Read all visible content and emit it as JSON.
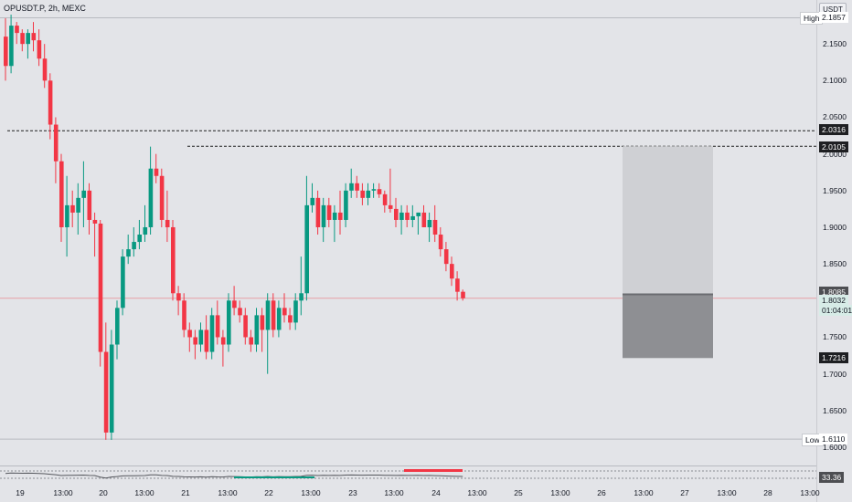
{
  "header": {
    "symbol": "OPUSDT.P, 2h, MEXC"
  },
  "currency_button": "USDT",
  "price_axis": {
    "ticks": [
      "2.1500",
      "2.1000",
      "2.0500",
      "2.0000",
      "1.9500",
      "1.9000",
      "1.8500",
      "1.8000",
      "1.7500",
      "1.7000",
      "1.6500",
      "1.6000"
    ],
    "high_label": "High",
    "high_value": "2.1857",
    "low_label": "Low",
    "low_value": "1.6110",
    "level_1": "2.0316",
    "level_2": "2.0105",
    "entry": "1.8085",
    "last_price": "1.8032",
    "countdown": "01:04:01",
    "stop": "1.7216"
  },
  "time_axis": {
    "labels": [
      "19",
      "13:00",
      "20",
      "13:00",
      "21",
      "13:00",
      "22",
      "13:00",
      "23",
      "13:00",
      "24",
      "13:00",
      "25",
      "13:00",
      "26",
      "13:00",
      "27",
      "13:00",
      "28",
      "13:00"
    ]
  },
  "indicator": {
    "value": "33.36"
  },
  "colors": {
    "up": "#089981",
    "down": "#f23645",
    "bg": "#e3e4e8",
    "box_upper": "#cfd0d4",
    "box_lower": "#8e8f93"
  },
  "chart_data": {
    "type": "candlestick",
    "title": "OPUSDT.P, 2h, MEXC",
    "timeframe": "2h",
    "ylim": [
      1.59,
      2.2
    ],
    "candles": [
      [
        2.16,
        2.185,
        2.1,
        2.12
      ],
      [
        2.12,
        2.19,
        2.11,
        2.175
      ],
      [
        2.175,
        2.18,
        2.15,
        2.165
      ],
      [
        2.165,
        2.17,
        2.14,
        2.15
      ],
      [
        2.15,
        2.17,
        2.13,
        2.165
      ],
      [
        2.165,
        2.18,
        2.14,
        2.155
      ],
      [
        2.155,
        2.17,
        2.12,
        2.13
      ],
      [
        2.13,
        2.15,
        2.09,
        2.1
      ],
      [
        2.1,
        2.11,
        2.02,
        2.04
      ],
      [
        2.04,
        2.05,
        1.96,
        1.99
      ],
      [
        1.99,
        2.0,
        1.88,
        1.9
      ],
      [
        1.9,
        1.97,
        1.86,
        1.93
      ],
      [
        1.93,
        1.95,
        1.9,
        1.92
      ],
      [
        1.92,
        1.96,
        1.89,
        1.94
      ],
      [
        1.94,
        1.99,
        1.9,
        1.95
      ],
      [
        1.95,
        1.96,
        1.89,
        1.91
      ],
      [
        1.91,
        1.92,
        1.86,
        1.905
      ],
      [
        1.905,
        1.91,
        1.71,
        1.73
      ],
      [
        1.73,
        1.77,
        1.61,
        1.62
      ],
      [
        1.62,
        1.76,
        1.61,
        1.74
      ],
      [
        1.74,
        1.8,
        1.72,
        1.79
      ],
      [
        1.79,
        1.87,
        1.78,
        1.86
      ],
      [
        1.86,
        1.89,
        1.85,
        1.87
      ],
      [
        1.87,
        1.9,
        1.86,
        1.88
      ],
      [
        1.88,
        1.91,
        1.87,
        1.89
      ],
      [
        1.89,
        1.93,
        1.88,
        1.9
      ],
      [
        1.9,
        2.01,
        1.89,
        1.98
      ],
      [
        1.98,
        2.0,
        1.96,
        1.97
      ],
      [
        1.97,
        1.98,
        1.9,
        1.91
      ],
      [
        1.91,
        1.95,
        1.88,
        1.9
      ],
      [
        1.9,
        1.91,
        1.8,
        1.81
      ],
      [
        1.81,
        1.82,
        1.78,
        1.8
      ],
      [
        1.8,
        1.81,
        1.75,
        1.76
      ],
      [
        1.76,
        1.77,
        1.73,
        1.75
      ],
      [
        1.75,
        1.76,
        1.72,
        1.74
      ],
      [
        1.74,
        1.77,
        1.73,
        1.76
      ],
      [
        1.76,
        1.78,
        1.72,
        1.73
      ],
      [
        1.73,
        1.79,
        1.72,
        1.78
      ],
      [
        1.78,
        1.8,
        1.74,
        1.75
      ],
      [
        1.75,
        1.76,
        1.71,
        1.74
      ],
      [
        1.74,
        1.81,
        1.73,
        1.8
      ],
      [
        1.8,
        1.82,
        1.78,
        1.79
      ],
      [
        1.79,
        1.8,
        1.77,
        1.78
      ],
      [
        1.78,
        1.79,
        1.74,
        1.75
      ],
      [
        1.75,
        1.76,
        1.73,
        1.74
      ],
      [
        1.74,
        1.79,
        1.73,
        1.78
      ],
      [
        1.78,
        1.79,
        1.73,
        1.76
      ],
      [
        1.76,
        1.81,
        1.7,
        1.8
      ],
      [
        1.8,
        1.81,
        1.75,
        1.76
      ],
      [
        1.76,
        1.8,
        1.75,
        1.79
      ],
      [
        1.79,
        1.81,
        1.77,
        1.78
      ],
      [
        1.78,
        1.79,
        1.76,
        1.77
      ],
      [
        1.77,
        1.81,
        1.76,
        1.8
      ],
      [
        1.8,
        1.86,
        1.78,
        1.81
      ],
      [
        1.81,
        1.97,
        1.8,
        1.93
      ],
      [
        1.93,
        1.96,
        1.92,
        1.94
      ],
      [
        1.94,
        1.95,
        1.89,
        1.9
      ],
      [
        1.9,
        1.94,
        1.88,
        1.93
      ],
      [
        1.93,
        1.94,
        1.9,
        1.91
      ],
      [
        1.91,
        1.93,
        1.88,
        1.92
      ],
      [
        1.92,
        1.95,
        1.89,
        1.91
      ],
      [
        1.91,
        1.96,
        1.9,
        1.95
      ],
      [
        1.95,
        1.98,
        1.94,
        1.96
      ],
      [
        1.96,
        1.97,
        1.94,
        1.95
      ],
      [
        1.95,
        1.96,
        1.93,
        1.94
      ],
      [
        1.94,
        1.96,
        1.93,
        1.95
      ],
      [
        1.95,
        1.96,
        1.94,
        1.952
      ],
      [
        1.952,
        1.96,
        1.94,
        1.945
      ],
      [
        1.945,
        1.95,
        1.92,
        1.93
      ],
      [
        1.93,
        1.98,
        1.92,
        1.925
      ],
      [
        1.925,
        1.94,
        1.9,
        1.91
      ],
      [
        1.91,
        1.93,
        1.89,
        1.92
      ],
      [
        1.92,
        1.93,
        1.9,
        1.91
      ],
      [
        1.91,
        1.93,
        1.9,
        1.915
      ],
      [
        1.915,
        1.92,
        1.89,
        1.92
      ],
      [
        1.92,
        1.93,
        1.9,
        1.9
      ],
      [
        1.9,
        1.92,
        1.88,
        1.91
      ],
      [
        1.91,
        1.93,
        1.88,
        1.89
      ],
      [
        1.89,
        1.9,
        1.86,
        1.87
      ],
      [
        1.87,
        1.88,
        1.84,
        1.85
      ],
      [
        1.85,
        1.86,
        1.82,
        1.83
      ],
      [
        1.83,
        1.84,
        1.8,
        1.812
      ],
      [
        1.812,
        1.815,
        1.8,
        1.8032
      ]
    ],
    "levels": [
      {
        "label": "2.0316",
        "value": 2.0316
      },
      {
        "label": "2.0105",
        "value": 2.0105
      }
    ],
    "position_box": {
      "top": 2.0105,
      "entry": 1.8085,
      "bottom": 1.7216
    },
    "high": 2.1857,
    "low": 1.611,
    "last": 1.8032
  }
}
